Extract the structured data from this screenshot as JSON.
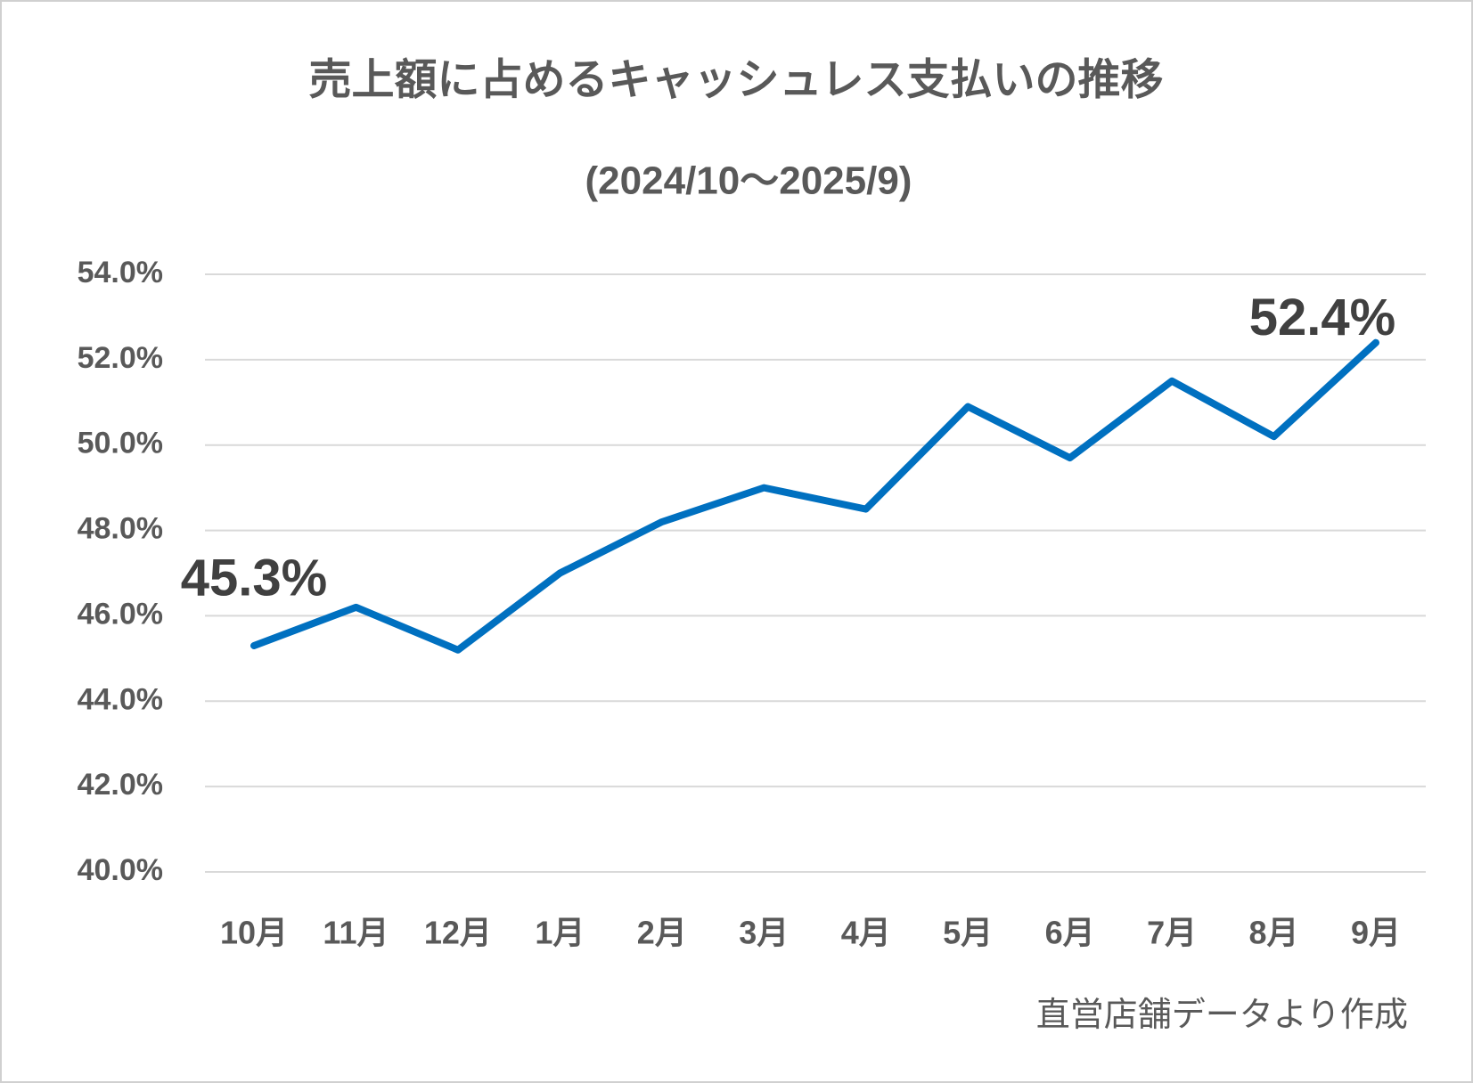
{
  "chart_data": {
    "type": "line",
    "title": "売上額に占めるキャッシュレス支払いの推移",
    "subtitle": "(2024/10〜2025/9)",
    "categories": [
      "10月",
      "11月",
      "12月",
      "1月",
      "2月",
      "3月",
      "4月",
      "5月",
      "6月",
      "7月",
      "8月",
      "9月"
    ],
    "values": [
      45.3,
      46.2,
      45.2,
      47.0,
      48.2,
      49.0,
      48.5,
      50.9,
      49.7,
      51.5,
      50.2,
      52.4
    ],
    "value_labels": [
      "45.3%",
      null,
      null,
      null,
      null,
      null,
      null,
      null,
      null,
      null,
      null,
      "52.4%"
    ],
    "color": "#0070c0",
    "ylim": [
      40,
      54
    ],
    "yticks": [
      {
        "value": 40,
        "label": "40.0%"
      },
      {
        "value": 42,
        "label": "42.0%"
      },
      {
        "value": 44,
        "label": "44.0%"
      },
      {
        "value": 46,
        "label": "46.0%"
      },
      {
        "value": 48,
        "label": "48.0%"
      },
      {
        "value": 50,
        "label": "50.0%"
      },
      {
        "value": 52,
        "label": "52.0%"
      },
      {
        "value": 54,
        "label": "54.0%"
      }
    ],
    "grid": true,
    "source": "直営店舗データより作成"
  }
}
